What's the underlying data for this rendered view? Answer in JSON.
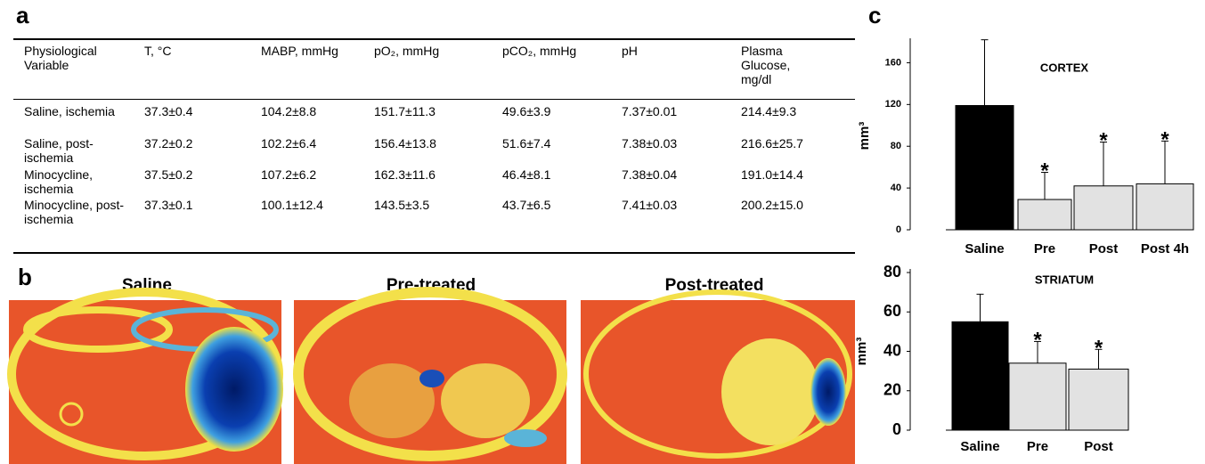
{
  "panels": {
    "a": "a",
    "b": "b",
    "c": "c"
  },
  "table": {
    "header": [
      "Physiological Variable",
      "T, °C",
      "MABP, mmHg",
      "pO₂, mmHg",
      "pCO₂, mmHg",
      "pH",
      "Plasma Glucose, mg/dl"
    ],
    "rows": [
      [
        "Saline, ischemia",
        "37.3±0.4",
        "104.2±8.8",
        "151.7±11.3",
        "49.6±3.9",
        "7.37±0.01",
        "214.4±9.3"
      ],
      [
        "Saline, post-ischemia",
        "37.2±0.2",
        "102.2±6.4",
        "156.4±13.8",
        "51.6±7.4",
        "7.38±0.03",
        "216.6±25.7"
      ],
      [
        "Minocycline, ischemia",
        "37.5±0.2",
        "107.2±6.2",
        "162.3±11.6",
        "46.4±8.1",
        "7.38±0.04",
        "191.0±14.4"
      ],
      [
        "Minocycline, post-ischemia",
        "37.3±0.1",
        "100.1±12.4",
        "143.5±3.5",
        "43.7±6.5",
        "7.41±0.03",
        "200.2±15.0"
      ]
    ]
  },
  "images": {
    "labels": [
      "Saline",
      "Pre-treated",
      "Post-treated"
    ]
  },
  "chart_data": [
    {
      "type": "bar",
      "title": "CORTEX",
      "y_label": "mm³",
      "categories": [
        "Saline",
        "Pre",
        "Post",
        "Post 4h"
      ],
      "values": [
        119,
        29,
        42,
        44
      ],
      "errors": [
        63,
        26,
        42,
        41
      ],
      "annotations": [
        null,
        "*",
        "*",
        "*"
      ],
      "colors": [
        "#000000",
        "#e2e2e2",
        "#e2e2e2",
        "#e2e2e2"
      ],
      "ylim": [
        0,
        180
      ],
      "yticks": [
        0,
        40,
        80,
        120,
        160
      ]
    },
    {
      "type": "bar",
      "title": "STRIATUM",
      "y_label": "mm³",
      "categories": [
        "Saline",
        "Pre",
        "Post"
      ],
      "values": [
        55,
        34,
        31
      ],
      "errors": [
        14,
        11,
        10
      ],
      "annotations": [
        null,
        "*",
        "*"
      ],
      "colors": [
        "#000000",
        "#e2e2e2",
        "#e2e2e2"
      ],
      "ylim": [
        0,
        80
      ],
      "yticks": [
        0,
        20,
        40,
        60,
        80
      ]
    }
  ]
}
